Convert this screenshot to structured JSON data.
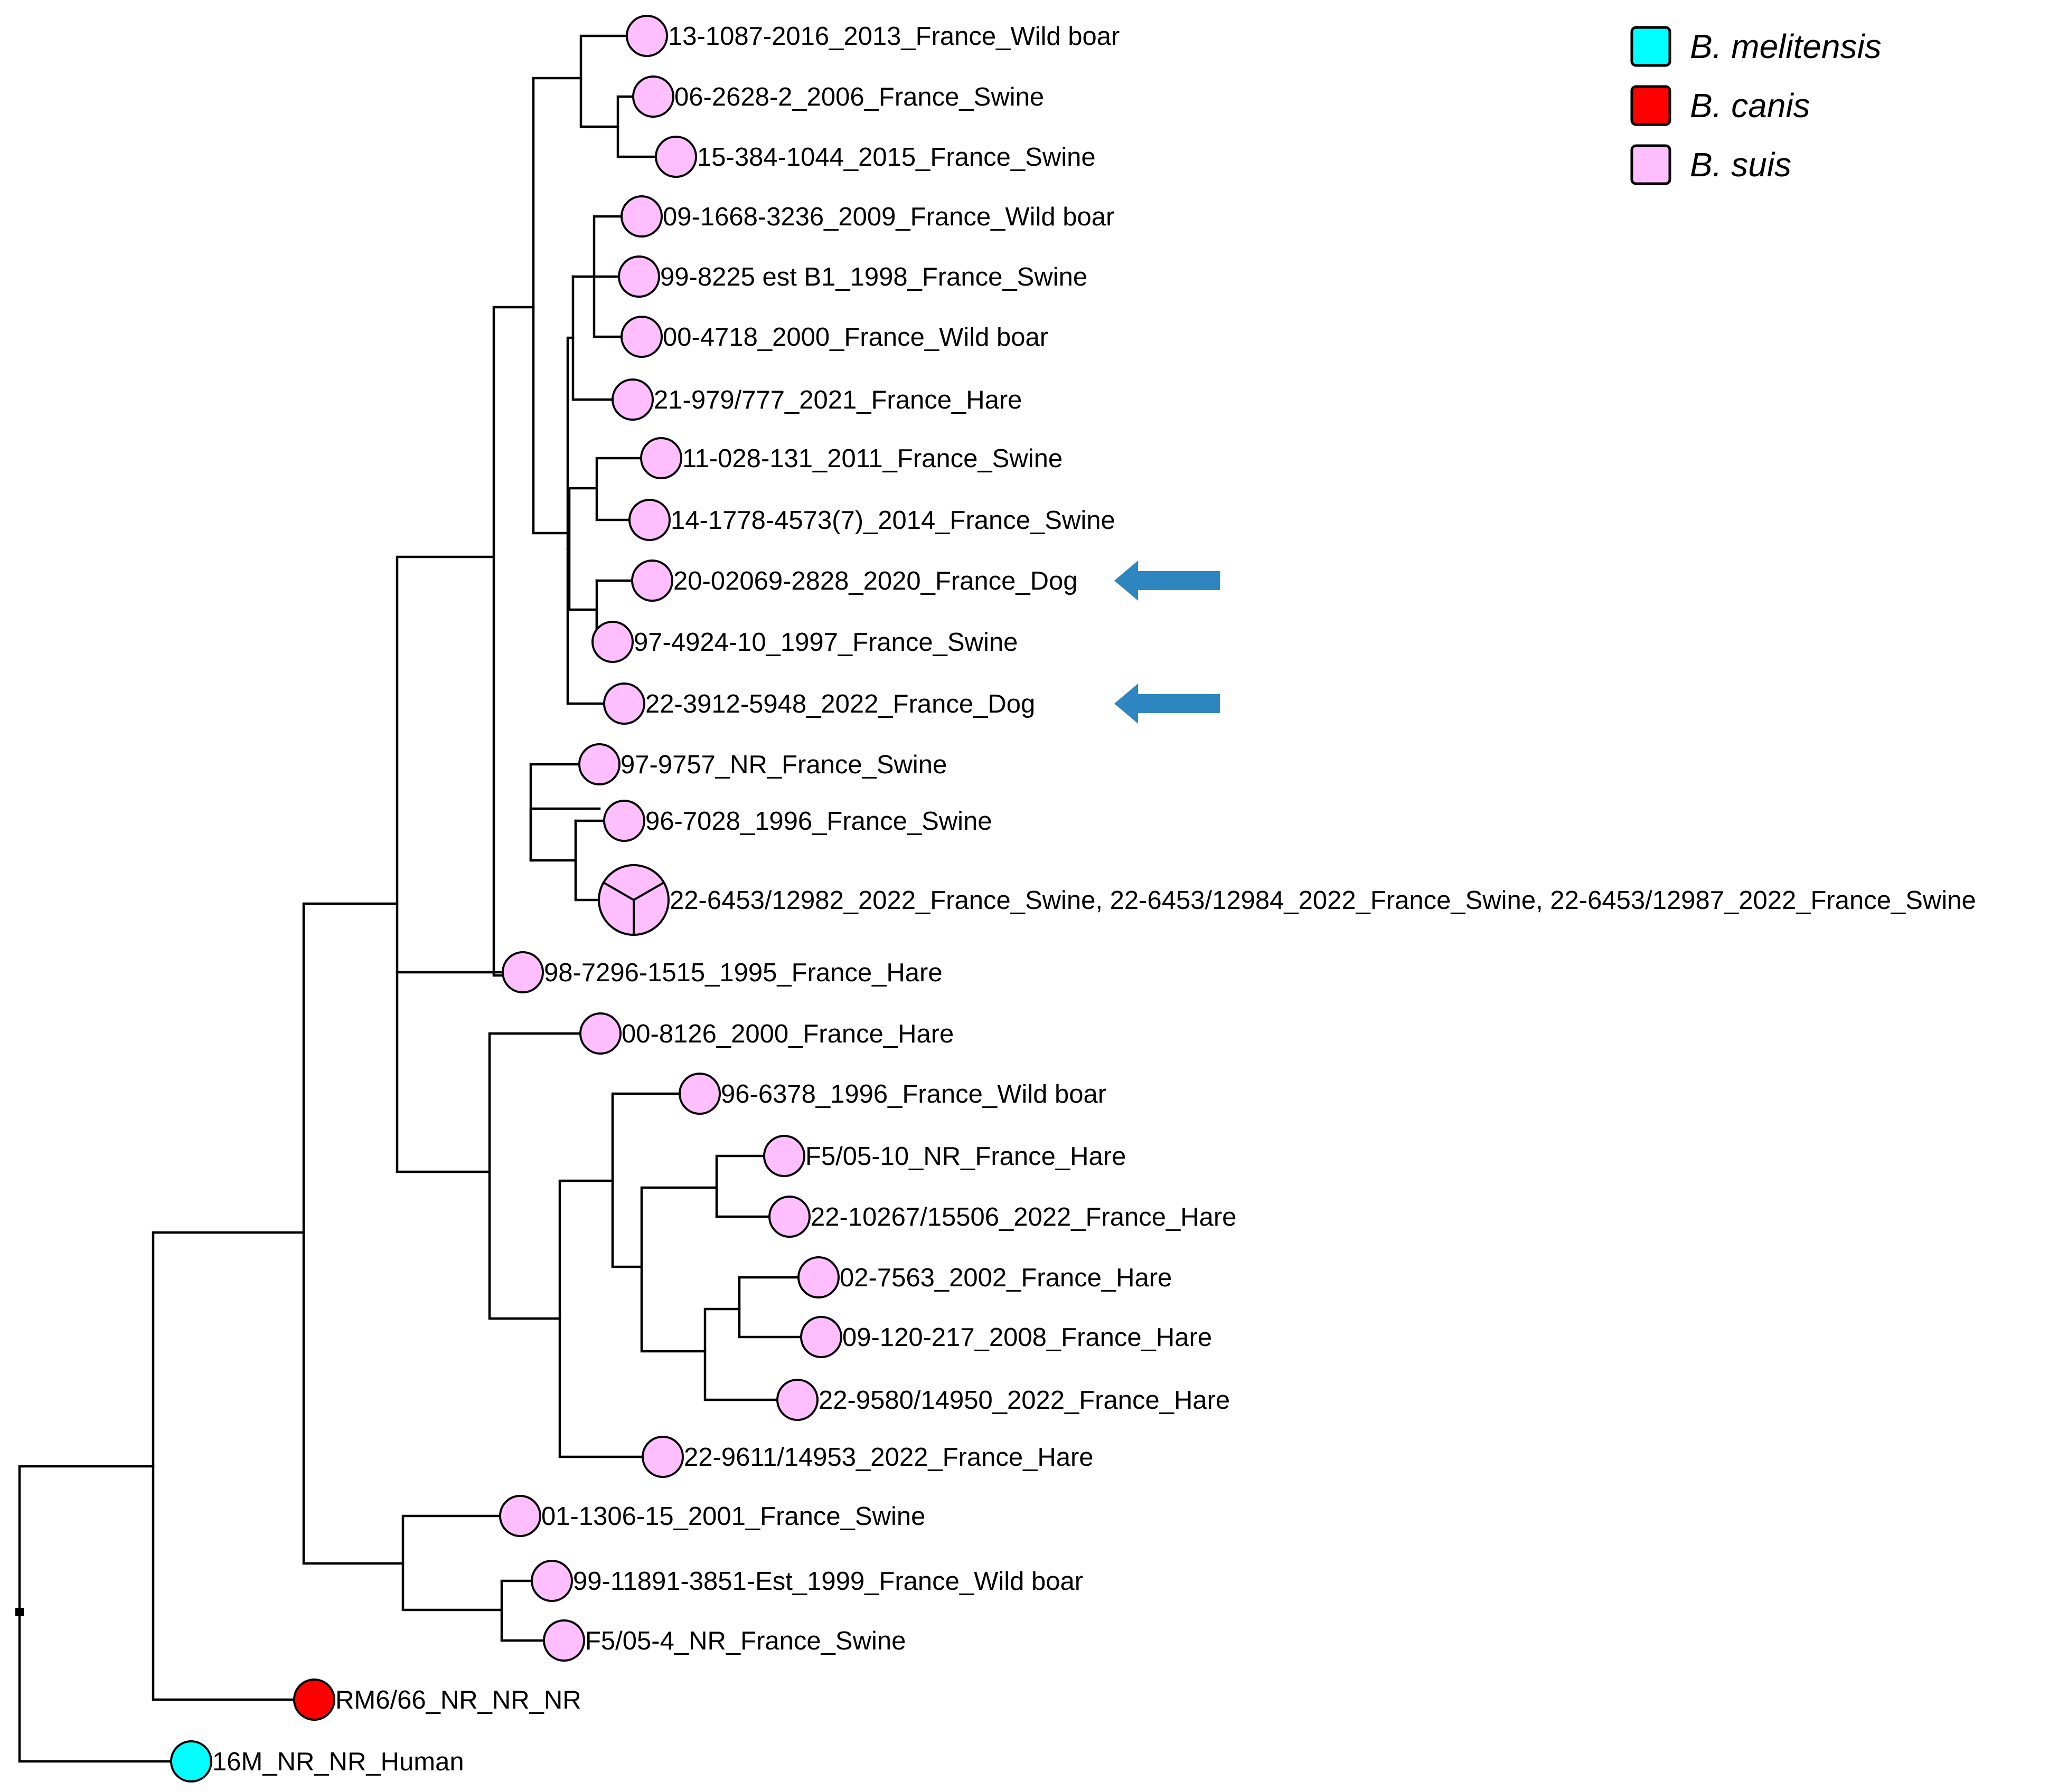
{
  "figure_type": "phylogenetic tree",
  "legend": {
    "items": [
      {
        "label": "B. melitensis",
        "color": "#00ffff"
      },
      {
        "label": "B. canis",
        "color": "#ff0000"
      },
      {
        "label": "B. suis",
        "color": "#ffbfff"
      }
    ]
  },
  "leaves": [
    {
      "label": "13-1087-2016_2013_France_Wild boar",
      "species": "B. suis"
    },
    {
      "label": "06-2628-2_2006_France_Swine",
      "species": "B. suis"
    },
    {
      "label": "15-384-1044_2015_France_Swine",
      "species": "B. suis"
    },
    {
      "label": "09-1668-3236_2009_France_Wild boar",
      "species": "B. suis"
    },
    {
      "label": "99-8225 est B1_1998_France_Swine",
      "species": "B. suis"
    },
    {
      "label": "00-4718_2000_France_Wild boar",
      "species": "B. suis"
    },
    {
      "label": "21-979/777_2021_France_Hare",
      "species": "B. suis"
    },
    {
      "label": "11-028-131_2011_France_Swine",
      "species": "B. suis"
    },
    {
      "label": "14-1778-4573(7)_2014_France_Swine",
      "species": "B. suis"
    },
    {
      "label": "20-02069-2828_2020_France_Dog",
      "species": "B. suis",
      "highlighted": true
    },
    {
      "label": "97-4924-10_1997_France_Swine",
      "species": "B. suis"
    },
    {
      "label": "22-3912-5948_2022_France_Dog",
      "species": "B. suis",
      "highlighted": true
    },
    {
      "label": "97-9757_NR_France_Swine",
      "species": "B. suis"
    },
    {
      "label": "96-7028_1996_France_Swine",
      "species": "B. suis"
    },
    {
      "label": "22-6453/12982_2022_France_Swine, 22-6453/12984_2022_France_Swine, 22-6453/12987_2022_France_Swine",
      "species": "B. suis",
      "count": 3
    },
    {
      "label": "98-7296-1515_1995_France_Hare",
      "species": "B. suis"
    },
    {
      "label": "00-8126_2000_France_Hare",
      "species": "B. suis"
    },
    {
      "label": "96-6378_1996_France_Wild boar",
      "species": "B. suis"
    },
    {
      "label": "F5/05-10_NR_France_Hare",
      "species": "B. suis"
    },
    {
      "label": "22-10267/15506_2022_France_Hare",
      "species": "B. suis"
    },
    {
      "label": "02-7563_2002_France_Hare",
      "species": "B. suis"
    },
    {
      "label": "09-120-217_2008_France_Hare",
      "species": "B. suis"
    },
    {
      "label": "22-9580/14950_2022_France_Hare",
      "species": "B. suis"
    },
    {
      "label": "22-9611/14953_2022_France_Hare",
      "species": "B. suis"
    },
    {
      "label": "01-1306-15_2001_France_Swine",
      "species": "B. suis"
    },
    {
      "label": "99-11891-3851-Est_1999_France_Wild boar",
      "species": "B. suis"
    },
    {
      "label": "F5/05-4_NR_France_Swine",
      "species": "B. suis"
    },
    {
      "label": "RM6/66_NR_NR_NR",
      "species": "B. canis"
    },
    {
      "label": "16M_NR_NR_Human",
      "species": "B. melitensis"
    }
  ],
  "arrow_color": "#2e86c1"
}
